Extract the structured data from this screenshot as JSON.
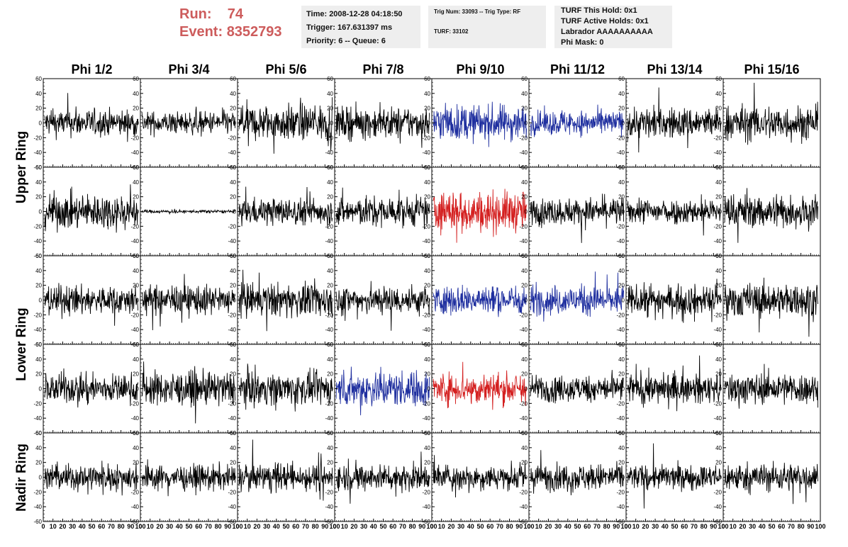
{
  "header": {
    "run_label": "Run:",
    "run_value": "74",
    "event_label": "Event:",
    "event_value": "8352793"
  },
  "info_box_1": {
    "time": "Time: 2008-12-28 04:18:50",
    "trigger": "Trigger: 167.631397 ms",
    "priority": "Priority: 6 -- Queue: 6"
  },
  "info_box_2": {
    "trig": "Trig Num: 33093 -- Trig Type: RF",
    "turf": "TURF: 33102"
  },
  "info_box_3": {
    "hold": "TURF This Hold: 0x1",
    "active": "TURF Active Holds: 0x1",
    "labrador": "Labrador AAAAAAAAAA",
    "phimask": "Phi Mask: 0"
  },
  "rings": [
    "Upper Ring",
    "Lower Ring",
    "Nadir Ring"
  ],
  "colors": {
    "normal": "#000000",
    "blue": "#1f2f9f",
    "red": "#d42020"
  },
  "chart_data": {
    "type": "line",
    "title": "",
    "columns": [
      "Phi 1/2",
      "Phi 3/4",
      "Phi 5/6",
      "Phi 7/8",
      "Phi 9/10",
      "Phi 11/12",
      "Phi 13/14",
      "Phi 15/16"
    ],
    "rows": 5,
    "xlim": [
      0,
      100
    ],
    "ylim": [
      -60,
      60
    ],
    "x_ticks": [
      0,
      10,
      20,
      30,
      40,
      50,
      60,
      70,
      80,
      90,
      100
    ],
    "y_ticks": [
      -60,
      -40,
      -20,
      0,
      20,
      40,
      60
    ],
    "panels": [
      [
        {
          "color": "black",
          "amp": 12
        },
        {
          "color": "black",
          "amp": 10
        },
        {
          "color": "black",
          "amp": 16
        },
        {
          "color": "black",
          "amp": 14
        },
        {
          "color": "blue",
          "amp": 16
        },
        {
          "color": "blue",
          "amp": 11
        },
        {
          "color": "black",
          "amp": 14
        },
        {
          "color": "black",
          "amp": 16
        }
      ],
      [
        {
          "color": "black",
          "amp": 16
        },
        {
          "color": "black",
          "amp": 1.5
        },
        {
          "color": "black",
          "amp": 12
        },
        {
          "color": "black",
          "amp": 13
        },
        {
          "color": "red",
          "amp": 18
        },
        {
          "color": "black",
          "amp": 12
        },
        {
          "color": "black",
          "amp": 11
        },
        {
          "color": "black",
          "amp": 15
        }
      ],
      [
        {
          "color": "black",
          "amp": 13
        },
        {
          "color": "black",
          "amp": 13
        },
        {
          "color": "black",
          "amp": 15
        },
        {
          "color": "black",
          "amp": 13
        },
        {
          "color": "blue",
          "amp": 13
        },
        {
          "color": "blue",
          "amp": 13
        },
        {
          "color": "black",
          "amp": 13
        },
        {
          "color": "black",
          "amp": 15
        }
      ],
      [
        {
          "color": "black",
          "amp": 13
        },
        {
          "color": "black",
          "amp": 15
        },
        {
          "color": "black",
          "amp": 14
        },
        {
          "color": "blue",
          "amp": 16
        },
        {
          "color": "red",
          "amp": 14
        },
        {
          "color": "black",
          "amp": 12
        },
        {
          "color": "black",
          "amp": 13
        },
        {
          "color": "black",
          "amp": 14
        }
      ],
      [
        {
          "color": "black",
          "amp": 12
        },
        {
          "color": "black",
          "amp": 11
        },
        {
          "color": "black",
          "amp": 12
        },
        {
          "color": "black",
          "amp": 12
        },
        {
          "color": "black",
          "amp": 11
        },
        {
          "color": "black",
          "amp": 12
        },
        {
          "color": "black",
          "amp": 11
        },
        {
          "color": "black",
          "amp": 13
        }
      ]
    ]
  }
}
